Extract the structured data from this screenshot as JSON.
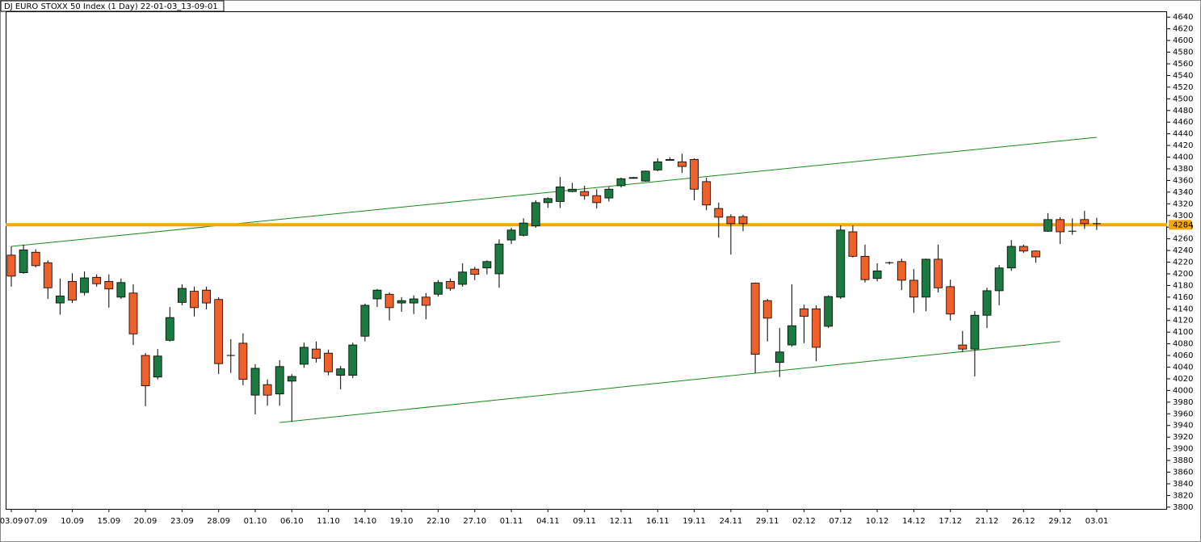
{
  "chart_data": {
    "type": "candlestick",
    "title": "DJ EURO STOXX 50 Index (1 Day) 22-01-03_13-09-01",
    "categories": [
      "03.09",
      null,
      "07.09",
      null,
      null,
      "10.09",
      null,
      null,
      "15.09",
      null,
      null,
      "20.09",
      null,
      null,
      "23.09",
      null,
      null,
      "28.09",
      null,
      null,
      "01.10",
      null,
      null,
      "06.10",
      null,
      null,
      "11.10",
      null,
      null,
      "14.10",
      null,
      null,
      "19.10",
      null,
      null,
      "22.10",
      null,
      null,
      "27.10",
      null,
      null,
      "01.11",
      null,
      null,
      "04.11",
      null,
      null,
      "09.11",
      null,
      null,
      "12.11",
      null,
      null,
      "16.11",
      null,
      null,
      "19.11",
      null,
      null,
      "24.11",
      null,
      null,
      "29.11",
      null,
      null,
      "02.12",
      null,
      null,
      "07.12",
      null,
      null,
      "10.12",
      null,
      null,
      "14.12",
      null,
      null,
      "17.12",
      null,
      null,
      "21.12",
      null,
      null,
      "26.12",
      null,
      null,
      "29.12",
      null,
      null,
      "03.01"
    ],
    "open": [
      4232,
      4202,
      4237,
      4219,
      4150,
      4187,
      4168,
      4194,
      4187,
      4160,
      4167,
      4060,
      4023,
      4086,
      4151,
      4170,
      4172,
      4156,
      4060,
      4081,
      3992,
      4010,
      3994,
      4016,
      4045,
      4071,
      4064,
      4026,
      4026,
      4093,
      4157,
      4165,
      4150,
      4150,
      4160,
      4165,
      4187,
      4182,
      4208,
      4210,
      4200,
      4258,
      4266,
      4282,
      4322,
      4324,
      4341,
      4341,
      4334,
      4330,
      4351,
      4364,
      4359,
      4378,
      4395,
      4392,
      4396,
      4358,
      4312,
      4298,
      4298,
      4184,
      4154,
      4048,
      4078,
      4140,
      4140,
      4110,
      4160,
      4272,
      4230,
      4192,
      4219,
      4221,
      4189,
      4160,
      4225,
      4178,
      4078,
      4071,
      4129,
      4171,
      4210,
      4247,
      4239,
      4273,
      4293,
      4273,
      4293,
      4286
    ],
    "high": [
      4247,
      4250,
      4242,
      4223,
      4192,
      4201,
      4204,
      4199,
      4199,
      4192,
      4182,
      4064,
      4071,
      4143,
      4182,
      4178,
      4178,
      4160,
      4088,
      4098,
      4045,
      4019,
      4052,
      4028,
      4082,
      4084,
      4070,
      4042,
      4082,
      4149,
      4174,
      4168,
      4160,
      4163,
      4167,
      4189,
      4192,
      4218,
      4212,
      4223,
      4259,
      4279,
      4295,
      4326,
      4331,
      4366,
      4356,
      4351,
      4345,
      4349,
      4365,
      4366,
      4377,
      4398,
      4400,
      4406,
      4398,
      4365,
      4322,
      4302,
      4301,
      4185,
      4157,
      4107,
      4182,
      4147,
      4146,
      4163,
      4283,
      4283,
      4250,
      4218,
      4221,
      4226,
      4208,
      4226,
      4250,
      4190,
      4102,
      4136,
      4176,
      4215,
      4258,
      4250,
      4240,
      4304,
      4297,
      4295,
      4308,
      4296
    ],
    "low": [
      4178,
      4200,
      4211,
      4157,
      4130,
      4150,
      4163,
      4178,
      4142,
      4157,
      4078,
      3973,
      4019,
      4084,
      4146,
      4127,
      4139,
      4028,
      4030,
      4009,
      3959,
      3974,
      3974,
      3946,
      4039,
      4048,
      4026,
      4002,
      4021,
      4084,
      4143,
      4120,
      4135,
      4131,
      4122,
      4161,
      4171,
      4178,
      4189,
      4199,
      4176,
      4251,
      4264,
      4279,
      4313,
      4313,
      4340,
      4327,
      4312,
      4324,
      4348,
      4363,
      4358,
      4376,
      4394,
      4373,
      4326,
      4309,
      4262,
      4233,
      4273,
      4030,
      4084,
      4023,
      4075,
      4081,
      4050,
      4107,
      4157,
      4228,
      4185,
      4187,
      4216,
      4172,
      4133,
      4136,
      4168,
      4120,
      4066,
      4024,
      4107,
      4146,
      4205,
      4236,
      4219,
      4272,
      4251,
      4267,
      4277,
      4275
    ],
    "close": [
      4196,
      4241,
      4214,
      4176,
      4162,
      4155,
      4193,
      4183,
      4174,
      4185,
      4097,
      4008,
      4059,
      4125,
      4175,
      4142,
      4150,
      4046,
      4060,
      4019,
      4038,
      3992,
      4041,
      4024,
      4074,
      4055,
      4032,
      4037,
      4078,
      4146,
      4172,
      4142,
      4154,
      4157,
      4146,
      4185,
      4175,
      4203,
      4199,
      4221,
      4251,
      4275,
      4287,
      4322,
      4329,
      4349,
      4345,
      4334,
      4322,
      4345,
      4363,
      4365,
      4376,
      4392,
      4396,
      4384,
      4345,
      4318,
      4297,
      4286,
      4286,
      4062,
      4124,
      4066,
      4111,
      4127,
      4074,
      4161,
      4275,
      4230,
      4190,
      4205,
      4219,
      4189,
      4160,
      4225,
      4176,
      4131,
      4071,
      4129,
      4171,
      4210,
      4247,
      4239,
      4229,
      4293,
      4272,
      4273,
      4286,
      4286
    ],
    "up_color": "#1a7a40",
    "down_color": "#f0602a",
    "ylim": [
      3797,
      4650
    ],
    "yticks": [
      3800,
      3820,
      3840,
      3860,
      3880,
      3900,
      3920,
      3940,
      3960,
      3980,
      4000,
      4020,
      4040,
      4060,
      4080,
      4100,
      4120,
      4140,
      4160,
      4180,
      4200,
      4220,
      4240,
      4260,
      4280,
      4300,
      4320,
      4340,
      4360,
      4380,
      4400,
      4420,
      4440,
      4460,
      4480,
      4500,
      4520,
      4540,
      4560,
      4580,
      4600,
      4620,
      4640
    ],
    "hline": {
      "value": 4284,
      "color": "#f5a800"
    },
    "trendlines": [
      {
        "x": [
          0,
          89
        ],
        "y": [
          4247,
          4434
        ],
        "color": "#1a8a1a"
      },
      {
        "x": [
          22,
          86
        ],
        "y": [
          3945,
          4084
        ],
        "color": "#1a8a1a"
      }
    ]
  }
}
